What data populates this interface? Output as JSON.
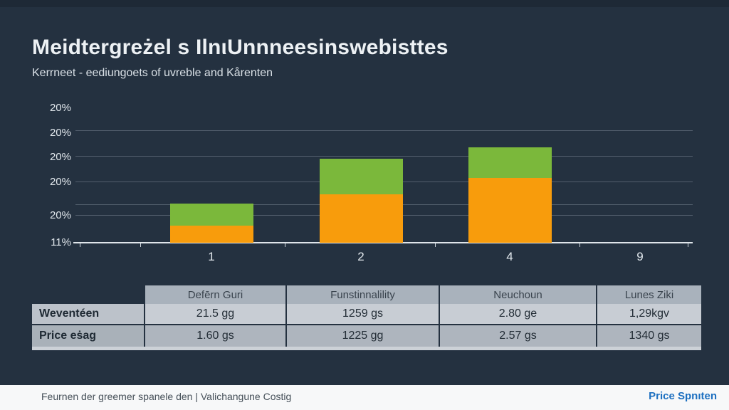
{
  "slide": {
    "title": "Meidtergreżel s IlnιUnnneesinswebisttes",
    "subtitle": "Kerrneet - eediungoets of uvreble and Kårenten"
  },
  "chart_data": {
    "type": "bar",
    "stacked": true,
    "categories": [
      "1",
      "2",
      "4",
      "9"
    ],
    "series": [
      {
        "name": "orange",
        "color": "#F89C0C",
        "values": [
          3.0,
          8.6,
          11.4,
          0
        ]
      },
      {
        "name": "green",
        "color": "#7BB83B",
        "values": [
          3.9,
          6.3,
          5.5,
          0
        ]
      }
    ],
    "y_tick_labels": [
      "20%",
      "20%",
      "20%",
      "20%",
      "20%",
      "11%"
    ],
    "x_tick_labels": [
      "1",
      "2",
      "4",
      "9"
    ],
    "xlabel": "",
    "ylabel": "",
    "grid": true,
    "legend": "none",
    "unit": "%"
  },
  "table": {
    "headers": [
      "Defērn Guri",
      "Funstinnalility",
      "Neuchoun",
      "Lunes Ziki"
    ],
    "rows": [
      {
        "label": "Weventéen",
        "values": [
          "21.5 gg",
          "1259 gs",
          "2.80 ge",
          "1,29kgv"
        ]
      },
      {
        "label": "Price eṡag",
        "values": [
          "1.60 gs",
          "1225 gg",
          "2.57 gs",
          "1340 gs"
        ]
      }
    ]
  },
  "footer": {
    "left": "Feurnen der greemer spanele den | Valichangune Costig",
    "right": "Price Spnıten"
  },
  "colors": {
    "background": "#243140",
    "orange": "#F89C0C",
    "green": "#7BB83B",
    "accent_blue": "#1C6FC0"
  }
}
